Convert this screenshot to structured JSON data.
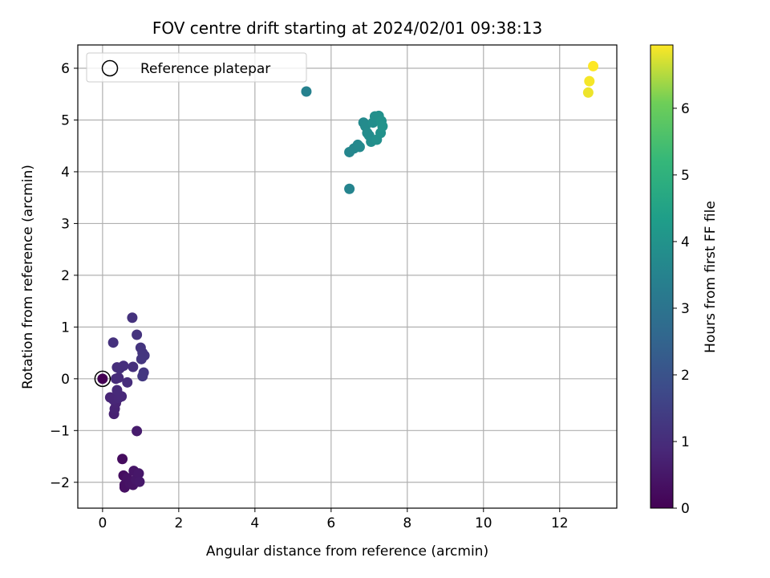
{
  "chart_data": {
    "type": "scatter",
    "title": "FOV centre drift starting at 2024/02/01 09:38:13",
    "xlabel": "Angular distance from reference (arcmin)",
    "ylabel": "Rotation from reference (arcmin)",
    "xlim": [
      -0.65,
      13.5
    ],
    "ylim": [
      -2.5,
      6.45
    ],
    "xticks": [
      0,
      2,
      4,
      6,
      8,
      10,
      12
    ],
    "yticks": [
      -2,
      -1,
      0,
      1,
      2,
      3,
      4,
      5,
      6
    ],
    "xtick_labels": [
      "0",
      "2",
      "4",
      "6",
      "8",
      "10",
      "12"
    ],
    "ytick_labels": [
      "−2",
      "−1",
      "0",
      "1",
      "2",
      "3",
      "4",
      "5",
      "6"
    ],
    "grid": true,
    "legend": {
      "placement": "upper-left",
      "entries": [
        {
          "label": "Reference platepar",
          "marker": "open-circle"
        }
      ]
    },
    "reference_point": {
      "x": 0,
      "y": 0
    },
    "colorbar": {
      "label": "Hours from first FF file",
      "colormap": "viridis",
      "range": [
        0,
        6.95
      ],
      "ticks": [
        0,
        1,
        2,
        3,
        4,
        5,
        6
      ],
      "tick_labels": [
        "0",
        "1",
        "2",
        "3",
        "4",
        "5",
        "6"
      ]
    },
    "points": [
      {
        "x": 0.0,
        "y": 0.0,
        "t": 0.0
      },
      {
        "x": 0.52,
        "y": -1.55,
        "t": 0.25
      },
      {
        "x": 0.55,
        "y": -1.87,
        "t": 0.3
      },
      {
        "x": 0.58,
        "y": -2.05,
        "t": 0.35
      },
      {
        "x": 0.58,
        "y": -2.1,
        "t": 0.33
      },
      {
        "x": 0.65,
        "y": -1.92,
        "t": 0.38
      },
      {
        "x": 0.72,
        "y": -2.02,
        "t": 0.4
      },
      {
        "x": 0.8,
        "y": -2.05,
        "t": 0.42
      },
      {
        "x": 0.82,
        "y": -1.78,
        "t": 0.45
      },
      {
        "x": 0.88,
        "y": -1.95,
        "t": 0.48
      },
      {
        "x": 0.95,
        "y": -1.83,
        "t": 0.5
      },
      {
        "x": 0.97,
        "y": -1.99,
        "t": 0.52
      },
      {
        "x": 0.9,
        "y": -1.01,
        "t": 0.6
      },
      {
        "x": 0.3,
        "y": -0.68,
        "t": 0.72
      },
      {
        "x": 0.32,
        "y": -0.58,
        "t": 0.75
      },
      {
        "x": 0.35,
        "y": -0.47,
        "t": 0.78
      },
      {
        "x": 0.2,
        "y": -0.36,
        "t": 0.82
      },
      {
        "x": 0.28,
        "y": -0.4,
        "t": 0.85
      },
      {
        "x": 0.42,
        "y": -0.37,
        "t": 0.88
      },
      {
        "x": 0.5,
        "y": -0.34,
        "t": 0.9
      },
      {
        "x": 0.38,
        "y": -0.22,
        "t": 0.92
      },
      {
        "x": 0.35,
        "y": 0.0,
        "t": 0.95
      },
      {
        "x": 0.42,
        "y": 0.02,
        "t": 0.97
      },
      {
        "x": 0.65,
        "y": -0.07,
        "t": 1.0
      },
      {
        "x": 0.38,
        "y": 0.22,
        "t": 1.02
      },
      {
        "x": 0.45,
        "y": 0.2,
        "t": 1.04
      },
      {
        "x": 0.55,
        "y": 0.25,
        "t": 1.06
      },
      {
        "x": 0.8,
        "y": 0.23,
        "t": 1.08
      },
      {
        "x": 0.28,
        "y": 0.7,
        "t": 1.1
      },
      {
        "x": 0.78,
        "y": 1.18,
        "t": 1.12
      },
      {
        "x": 0.9,
        "y": 0.85,
        "t": 1.15
      },
      {
        "x": 1.0,
        "y": 0.6,
        "t": 1.18
      },
      {
        "x": 1.05,
        "y": 0.5,
        "t": 1.2
      },
      {
        "x": 1.1,
        "y": 0.45,
        "t": 1.22
      },
      {
        "x": 1.02,
        "y": 0.38,
        "t": 1.24
      },
      {
        "x": 1.08,
        "y": 0.12,
        "t": 1.26
      },
      {
        "x": 1.05,
        "y": 0.05,
        "t": 1.28
      },
      {
        "x": 5.35,
        "y": 5.55,
        "t": 3.45
      },
      {
        "x": 6.48,
        "y": 3.67,
        "t": 3.55
      },
      {
        "x": 6.48,
        "y": 4.38,
        "t": 3.6
      },
      {
        "x": 6.6,
        "y": 4.45,
        "t": 3.62
      },
      {
        "x": 6.7,
        "y": 4.52,
        "t": 3.65
      },
      {
        "x": 6.75,
        "y": 4.48,
        "t": 3.68
      },
      {
        "x": 6.85,
        "y": 4.95,
        "t": 3.72
      },
      {
        "x": 6.9,
        "y": 4.88,
        "t": 3.75
      },
      {
        "x": 6.95,
        "y": 4.75,
        "t": 3.78
      },
      {
        "x": 7.0,
        "y": 4.7,
        "t": 3.8
      },
      {
        "x": 7.05,
        "y": 4.58,
        "t": 3.82
      },
      {
        "x": 7.1,
        "y": 4.95,
        "t": 3.85
      },
      {
        "x": 7.15,
        "y": 5.07,
        "t": 3.88
      },
      {
        "x": 7.2,
        "y": 4.62,
        "t": 3.9
      },
      {
        "x": 7.25,
        "y": 5.08,
        "t": 3.92
      },
      {
        "x": 7.3,
        "y": 4.75,
        "t": 3.95
      },
      {
        "x": 7.32,
        "y": 4.98,
        "t": 3.97
      },
      {
        "x": 7.35,
        "y": 4.88,
        "t": 4.0
      },
      {
        "x": 12.75,
        "y": 5.53,
        "t": 6.85
      },
      {
        "x": 12.78,
        "y": 5.75,
        "t": 6.9
      },
      {
        "x": 12.88,
        "y": 6.04,
        "t": 6.95
      }
    ]
  }
}
